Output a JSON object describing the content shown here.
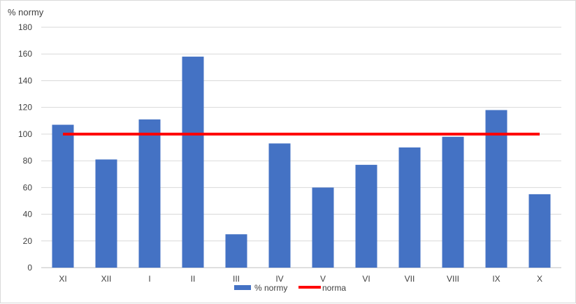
{
  "chart_data": {
    "type": "bar",
    "ylabel": "% normy",
    "ylim": [
      0,
      180
    ],
    "yticks": [
      0,
      20,
      40,
      60,
      80,
      100,
      120,
      140,
      160,
      180
    ],
    "grid": true,
    "legend_position": "bottom",
    "categories": [
      "XI",
      "XII",
      "I",
      "II",
      "III",
      "IV",
      "V",
      "VI",
      "VII",
      "VIII",
      "IX",
      "X"
    ],
    "series": [
      {
        "name": "% normy",
        "type": "bar",
        "color": "#4472c4",
        "values": [
          107,
          81,
          111,
          158,
          25,
          93,
          60,
          77,
          90,
          98,
          118,
          55
        ]
      },
      {
        "name": "norma",
        "type": "line",
        "color": "#ff0000",
        "values": [
          100,
          100,
          100,
          100,
          100,
          100,
          100,
          100,
          100,
          100,
          100,
          100
        ]
      }
    ]
  }
}
